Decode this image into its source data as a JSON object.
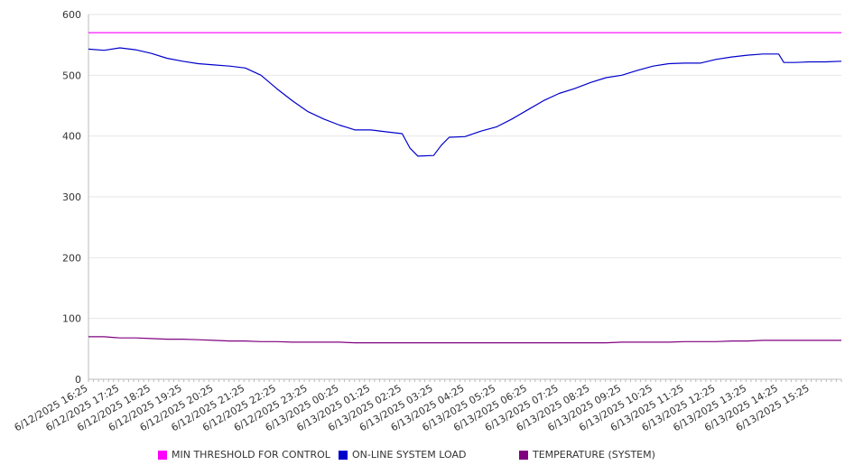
{
  "chart_data": {
    "type": "line",
    "title": "",
    "xlabel": "",
    "ylabel": "",
    "ylim": [
      0,
      600
    ],
    "yticks": [
      0,
      100,
      200,
      300,
      400,
      500,
      600
    ],
    "grid": "horizontal",
    "legend_position": "bottom",
    "x_tick_labels": [
      "6/12/2025 16:25",
      "6/12/2025 17:25",
      "6/12/2025 18:25",
      "6/12/2025 19:25",
      "6/12/2025 20:25",
      "6/12/2025 21:25",
      "6/12/2025 22:25",
      "6/12/2025 23:25",
      "6/13/2025 00:25",
      "6/13/2025 01:25",
      "6/13/2025 02:25",
      "6/13/2025 03:25",
      "6/13/2025 04:25",
      "6/13/2025 05:25",
      "6/13/2025 06:25",
      "6/13/2025 07:25",
      "6/13/2025 08:25",
      "6/13/2025 09:25",
      "6/13/2025 10:25",
      "6/13/2025 11:25",
      "6/13/2025 12:25",
      "6/13/2025 13:25",
      "6/13/2025 14:25",
      "6/13/2025 15:25"
    ],
    "x": [
      "6/12/2025 16:25",
      "6/12/2025 16:55",
      "6/12/2025 17:25",
      "6/12/2025 17:55",
      "6/12/2025 18:25",
      "6/12/2025 18:55",
      "6/12/2025 19:25",
      "6/12/2025 19:55",
      "6/12/2025 20:25",
      "6/12/2025 20:55",
      "6/12/2025 21:25",
      "6/12/2025 21:55",
      "6/12/2025 22:25",
      "6/12/2025 22:55",
      "6/12/2025 23:25",
      "6/12/2025 23:55",
      "6/13/2025 00:25",
      "6/13/2025 00:55",
      "6/13/2025 01:25",
      "6/13/2025 01:55",
      "6/13/2025 02:25",
      "6/13/2025 02:40",
      "6/13/2025 02:55",
      "6/13/2025 03:25",
      "6/13/2025 03:40",
      "6/13/2025 03:55",
      "6/13/2025 04:25",
      "6/13/2025 04:55",
      "6/13/2025 05:25",
      "6/13/2025 05:55",
      "6/13/2025 06:25",
      "6/13/2025 06:55",
      "6/13/2025 07:25",
      "6/13/2025 07:55",
      "6/13/2025 08:25",
      "6/13/2025 08:55",
      "6/13/2025 09:25",
      "6/13/2025 09:55",
      "6/13/2025 10:25",
      "6/13/2025 10:55",
      "6/13/2025 11:25",
      "6/13/2025 11:55",
      "6/13/2025 12:25",
      "6/13/2025 12:55",
      "6/13/2025 13:25",
      "6/13/2025 13:55",
      "6/13/2025 14:25",
      "6/13/2025 14:35",
      "6/13/2025 14:55",
      "6/13/2025 15:25",
      "6/13/2025 15:55",
      "6/13/2025 16:25"
    ],
    "series": [
      {
        "name": "MIN THRESHOLD FOR CONTROL",
        "color": "#ff00ff",
        "values": [
          570,
          570,
          570,
          570,
          570,
          570,
          570,
          570,
          570,
          570,
          570,
          570,
          570,
          570,
          570,
          570,
          570,
          570,
          570,
          570,
          570,
          570,
          570,
          570,
          570,
          570,
          570,
          570,
          570,
          570,
          570,
          570,
          570,
          570,
          570,
          570,
          570,
          570,
          570,
          570,
          570,
          570,
          570,
          570,
          570,
          570,
          570,
          570,
          570,
          570,
          570,
          570
        ]
      },
      {
        "name": "ON-LINE SYSTEM LOAD",
        "color": "#0000cc",
        "values": [
          543,
          541,
          545,
          542,
          536,
          528,
          523,
          519,
          517,
          515,
          512,
          500,
          478,
          458,
          440,
          428,
          418,
          410,
          410,
          407,
          404,
          380,
          367,
          368,
          385,
          398,
          399,
          408,
          415,
          428,
          443,
          458,
          470,
          478,
          488,
          496,
          500,
          508,
          515,
          519,
          520,
          520,
          526,
          530,
          533,
          535,
          535,
          521,
          521,
          522,
          522,
          523
        ]
      },
      {
        "name": "TEMPERATURE (SYSTEM)",
        "color": "#800080",
        "values": [
          70,
          70,
          68,
          68,
          67,
          66,
          66,
          65,
          64,
          63,
          63,
          62,
          62,
          61,
          61,
          61,
          61,
          60,
          60,
          60,
          60,
          60,
          60,
          60,
          60,
          60,
          60,
          60,
          60,
          60,
          60,
          60,
          60,
          60,
          60,
          60,
          61,
          61,
          61,
          61,
          62,
          62,
          62,
          63,
          63,
          64,
          64,
          64,
          64,
          64,
          64,
          64
        ]
      }
    ]
  }
}
